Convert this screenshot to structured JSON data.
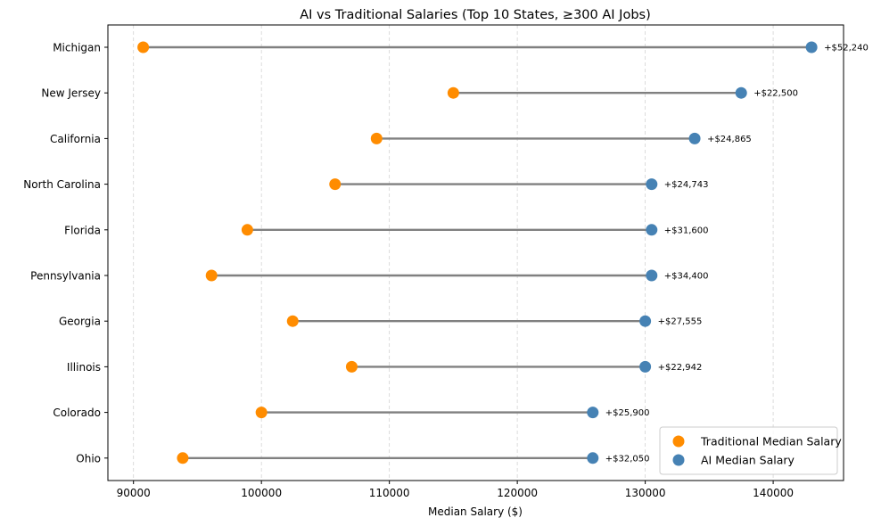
{
  "chart_data": {
    "type": "dumbbell",
    "title": "AI vs Traditional Salaries (Top 10 States, ≥300 AI Jobs)",
    "xlabel": "Median Salary ($)",
    "ylabel": "",
    "xlim": [
      88000,
      145500
    ],
    "xticks": [
      90000,
      100000,
      110000,
      120000,
      130000,
      140000
    ],
    "grid": "x-dashed",
    "legend_position": "bottom-right",
    "colors": {
      "traditional": "#ff8c00",
      "ai": "#4682b4",
      "connector": "#808080",
      "grid": "#d3d3d3"
    },
    "series": [
      {
        "name": "Traditional Median Salary",
        "key": "traditional"
      },
      {
        "name": "AI Median Salary",
        "key": "ai"
      }
    ],
    "states": [
      {
        "state": "Michigan",
        "traditional": 90760,
        "ai": 143000,
        "diff_label": "+$52,240"
      },
      {
        "state": "New Jersey",
        "traditional": 115000,
        "ai": 137500,
        "diff_label": "+$22,500"
      },
      {
        "state": "California",
        "traditional": 109000,
        "ai": 133865,
        "diff_label": "+$24,865"
      },
      {
        "state": "North Carolina",
        "traditional": 105757,
        "ai": 130500,
        "diff_label": "+$24,743"
      },
      {
        "state": "Florida",
        "traditional": 98900,
        "ai": 130500,
        "diff_label": "+$31,600"
      },
      {
        "state": "Pennsylvania",
        "traditional": 96100,
        "ai": 130500,
        "diff_label": "+$34,400"
      },
      {
        "state": "Georgia",
        "traditional": 102445,
        "ai": 130000,
        "diff_label": "+$27,555"
      },
      {
        "state": "Illinois",
        "traditional": 107058,
        "ai": 130000,
        "diff_label": "+$22,942"
      },
      {
        "state": "Colorado",
        "traditional": 100000,
        "ai": 125900,
        "diff_label": "+$25,900"
      },
      {
        "state": "Ohio",
        "traditional": 93850,
        "ai": 125900,
        "diff_label": "+$32,050"
      }
    ]
  }
}
